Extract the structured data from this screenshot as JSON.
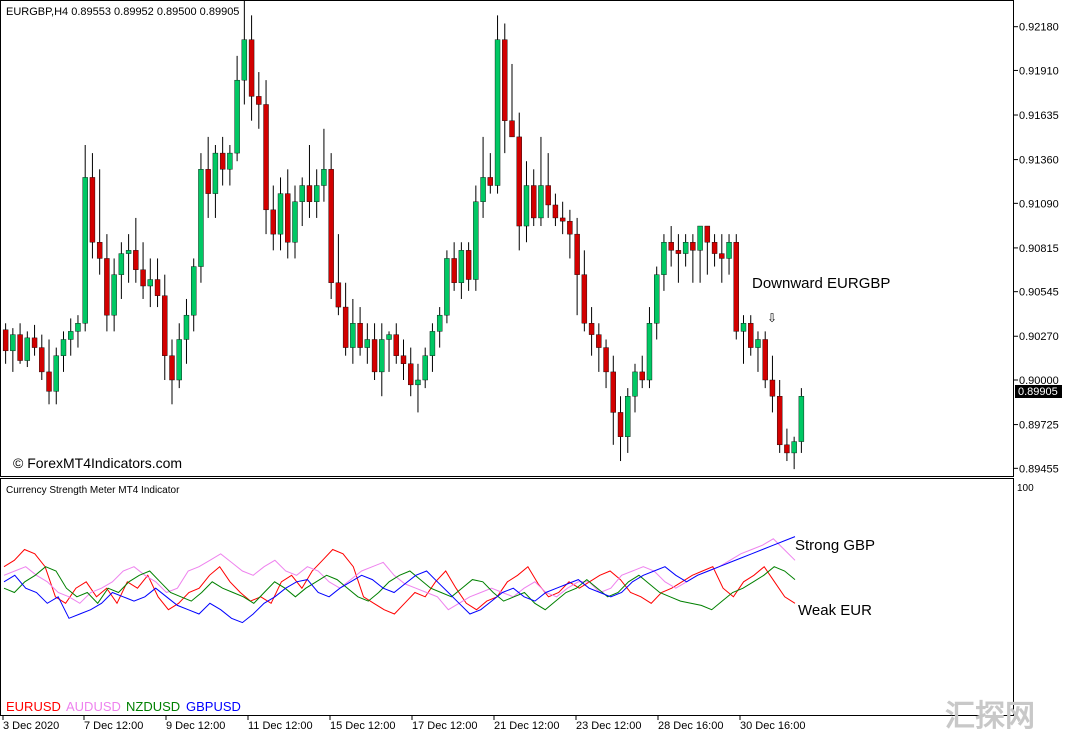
{
  "main_panel": {
    "header": "EURGBP,H4  0.89553 0.89952 0.89500 0.89905",
    "watermark": "© ForexMT4Indicators.com",
    "annotation": "Downward EURGBP",
    "annotation_arrow": "⇩",
    "current_price": "0.89905",
    "price_ticks": [
      "0.92180",
      "0.91910",
      "0.91635",
      "0.91360",
      "0.91090",
      "0.90815",
      "0.90545",
      "0.90270",
      "0.90000",
      "0.89725",
      "0.89455"
    ]
  },
  "indicator_panel": {
    "title": "Currency Strength Meter MT4 Indicator",
    "top_label": "100",
    "label_strong": "Strong GBP",
    "label_weak": "Weak EUR",
    "legend": [
      {
        "name": "EURUSD",
        "color": "#ff0000"
      },
      {
        "name": "AUDUSD",
        "color": "#ee82ee"
      },
      {
        "name": "NZDUSD",
        "color": "#008000"
      },
      {
        "name": "GBPUSD",
        "color": "#0000ff"
      }
    ]
  },
  "time_axis": [
    "3 Dec 2020",
    "7 Dec 12:00",
    "9 Dec 12:00",
    "11 Dec 12:00",
    "15 Dec 12:00",
    "17 Dec 12:00",
    "21 Dec 12:00",
    "23 Dec 12:00",
    "28 Dec 16:00",
    "30 Dec 16:00"
  ],
  "logo_text": "汇探网",
  "colors": {
    "bull": "#00c864",
    "bear": "#d20000",
    "wick": "#000000",
    "frame": "#000000"
  },
  "chart_data": {
    "type": "candlestick",
    "symbol": "EURGBP",
    "timeframe": "H4",
    "ylim": [
      0.8942,
      0.9232
    ],
    "candles": [
      [
        0.9031,
        0.9035,
        0.901,
        0.9018
      ],
      [
        0.9018,
        0.9032,
        0.9005,
        0.9028
      ],
      [
        0.9028,
        0.9035,
        0.901,
        0.9012
      ],
      [
        0.9012,
        0.903,
        0.9008,
        0.9026
      ],
      [
        0.9026,
        0.9034,
        0.9015,
        0.902
      ],
      [
        0.902,
        0.9028,
        0.9,
        0.9005
      ],
      [
        0.9005,
        0.9025,
        0.8985,
        0.8993
      ],
      [
        0.8993,
        0.902,
        0.8985,
        0.9015
      ],
      [
        0.9015,
        0.903,
        0.9005,
        0.9025
      ],
      [
        0.9025,
        0.9038,
        0.9015,
        0.903
      ],
      [
        0.903,
        0.904,
        0.902,
        0.9035
      ],
      [
        0.9035,
        0.9145,
        0.903,
        0.9125
      ],
      [
        0.9125,
        0.914,
        0.9075,
        0.9085
      ],
      [
        0.9085,
        0.913,
        0.9065,
        0.9075
      ],
      [
        0.9075,
        0.909,
        0.903,
        0.904
      ],
      [
        0.904,
        0.9075,
        0.903,
        0.9065
      ],
      [
        0.9065,
        0.9085,
        0.905,
        0.9078
      ],
      [
        0.9078,
        0.909,
        0.906,
        0.908
      ],
      [
        0.908,
        0.91,
        0.906,
        0.9068
      ],
      [
        0.9068,
        0.9085,
        0.905,
        0.9058
      ],
      [
        0.9058,
        0.9075,
        0.9045,
        0.9062
      ],
      [
        0.9062,
        0.9075,
        0.9045,
        0.9052
      ],
      [
        0.9052,
        0.9065,
        0.9,
        0.9015
      ],
      [
        0.9015,
        0.9025,
        0.8985,
        0.9
      ],
      [
        0.9,
        0.9035,
        0.8995,
        0.9025
      ],
      [
        0.9025,
        0.905,
        0.901,
        0.904
      ],
      [
        0.904,
        0.9075,
        0.903,
        0.907
      ],
      [
        0.907,
        0.914,
        0.906,
        0.913
      ],
      [
        0.913,
        0.915,
        0.91,
        0.9115
      ],
      [
        0.9115,
        0.9145,
        0.91,
        0.914
      ],
      [
        0.914,
        0.915,
        0.912,
        0.913
      ],
      [
        0.913,
        0.9145,
        0.912,
        0.914
      ],
      [
        0.914,
        0.92,
        0.9135,
        0.9185
      ],
      [
        0.9185,
        0.9235,
        0.917,
        0.921
      ],
      [
        0.921,
        0.9225,
        0.916,
        0.9175
      ],
      [
        0.9175,
        0.919,
        0.9155,
        0.917
      ],
      [
        0.917,
        0.9185,
        0.909,
        0.9105
      ],
      [
        0.9105,
        0.912,
        0.908,
        0.909
      ],
      [
        0.909,
        0.9125,
        0.908,
        0.9115
      ],
      [
        0.9115,
        0.913,
        0.9075,
        0.9085
      ],
      [
        0.9085,
        0.912,
        0.9075,
        0.911
      ],
      [
        0.911,
        0.9125,
        0.9095,
        0.912
      ],
      [
        0.912,
        0.9145,
        0.91,
        0.911
      ],
      [
        0.911,
        0.913,
        0.91,
        0.912
      ],
      [
        0.912,
        0.9155,
        0.911,
        0.913
      ],
      [
        0.913,
        0.914,
        0.905,
        0.906
      ],
      [
        0.906,
        0.909,
        0.904,
        0.9045
      ],
      [
        0.9045,
        0.906,
        0.9015,
        0.902
      ],
      [
        0.902,
        0.905,
        0.901,
        0.9035
      ],
      [
        0.9035,
        0.9045,
        0.9015,
        0.902
      ],
      [
        0.902,
        0.9035,
        0.901,
        0.9025
      ],
      [
        0.9025,
        0.9035,
        0.9,
        0.9005
      ],
      [
        0.9005,
        0.9035,
        0.899,
        0.9025
      ],
      [
        0.9025,
        0.903,
        0.9005,
        0.9028
      ],
      [
        0.9028,
        0.9035,
        0.901,
        0.9015
      ],
      [
        0.9015,
        0.9025,
        0.9,
        0.901
      ],
      [
        0.901,
        0.902,
        0.899,
        0.8997
      ],
      [
        0.8997,
        0.901,
        0.898,
        0.9
      ],
      [
        0.9,
        0.902,
        0.8995,
        0.9015
      ],
      [
        0.9015,
        0.9035,
        0.9005,
        0.903
      ],
      [
        0.903,
        0.9045,
        0.902,
        0.904
      ],
      [
        0.904,
        0.908,
        0.9035,
        0.9075
      ],
      [
        0.9075,
        0.9085,
        0.9055,
        0.906
      ],
      [
        0.906,
        0.9085,
        0.905,
        0.908
      ],
      [
        0.908,
        0.9085,
        0.9055,
        0.9062
      ],
      [
        0.9062,
        0.912,
        0.9055,
        0.911
      ],
      [
        0.911,
        0.915,
        0.91,
        0.9125
      ],
      [
        0.9125,
        0.914,
        0.9115,
        0.912
      ],
      [
        0.912,
        0.9225,
        0.9115,
        0.921
      ],
      [
        0.921,
        0.922,
        0.914,
        0.916
      ],
      [
        0.916,
        0.9195,
        0.915,
        0.915
      ],
      [
        0.915,
        0.9165,
        0.908,
        0.9095
      ],
      [
        0.9095,
        0.9135,
        0.9085,
        0.912
      ],
      [
        0.912,
        0.913,
        0.9095,
        0.91
      ],
      [
        0.91,
        0.915,
        0.9095,
        0.912
      ],
      [
        0.912,
        0.914,
        0.91,
        0.9108
      ],
      [
        0.9108,
        0.9115,
        0.9095,
        0.91
      ],
      [
        0.91,
        0.911,
        0.909,
        0.9098
      ],
      [
        0.9098,
        0.9105,
        0.9075,
        0.909
      ],
      [
        0.909,
        0.91,
        0.904,
        0.9065
      ],
      [
        0.9065,
        0.908,
        0.903,
        0.9035
      ],
      [
        0.9035,
        0.9045,
        0.9015,
        0.9028
      ],
      [
        0.9028,
        0.9035,
        0.9005,
        0.902
      ],
      [
        0.902,
        0.9025,
        0.8995,
        0.9005
      ],
      [
        0.9005,
        0.9015,
        0.896,
        0.898
      ],
      [
        0.898,
        0.899,
        0.895,
        0.8965
      ],
      [
        0.8965,
        0.8995,
        0.8955,
        0.899
      ],
      [
        0.899,
        0.901,
        0.898,
        0.9005
      ],
      [
        0.9005,
        0.9015,
        0.8995,
        0.9
      ],
      [
        0.9,
        0.9045,
        0.8995,
        0.9035
      ],
      [
        0.9035,
        0.907,
        0.9025,
        0.9065
      ],
      [
        0.9065,
        0.909,
        0.9055,
        0.9085
      ],
      [
        0.9085,
        0.9095,
        0.907,
        0.908
      ],
      [
        0.908,
        0.909,
        0.906,
        0.9078
      ],
      [
        0.9078,
        0.909,
        0.907,
        0.9085
      ],
      [
        0.9085,
        0.909,
        0.906,
        0.908
      ],
      [
        0.908,
        0.9095,
        0.906,
        0.9095
      ],
      [
        0.9095,
        0.9095,
        0.9065,
        0.9085
      ],
      [
        0.9085,
        0.909,
        0.907,
        0.9078
      ],
      [
        0.9078,
        0.909,
        0.906,
        0.9075
      ],
      [
        0.9075,
        0.909,
        0.9065,
        0.9085
      ],
      [
        0.9085,
        0.909,
        0.9025,
        0.903
      ],
      [
        0.903,
        0.904,
        0.901,
        0.9035
      ],
      [
        0.9035,
        0.904,
        0.9015,
        0.902
      ],
      [
        0.902,
        0.903,
        0.9005,
        0.9025
      ],
      [
        0.9025,
        0.903,
        0.8995,
        0.9
      ],
      [
        0.9,
        0.9015,
        0.898,
        0.899
      ],
      [
        0.899,
        0.9,
        0.8955,
        0.896
      ],
      [
        0.896,
        0.897,
        0.895,
        0.8955
      ],
      [
        0.8955,
        0.8965,
        0.8945,
        0.8962
      ],
      [
        0.8962,
        0.8995,
        0.8955,
        0.899
      ]
    ],
    "strength": {
      "ylim": [
        0,
        100
      ],
      "series": [
        {
          "name": "EURUSD",
          "color": "#ff0000",
          "values": [
            62,
            65,
            70,
            68,
            62,
            48,
            45,
            52,
            55,
            48,
            52,
            45,
            55,
            52,
            58,
            48,
            42,
            45,
            50,
            52,
            58,
            62,
            55,
            50,
            46,
            48,
            45,
            55,
            58,
            52,
            60,
            65,
            70,
            68,
            62,
            48,
            45,
            42,
            40,
            45,
            50,
            48,
            55,
            60,
            52,
            45,
            42,
            46,
            48,
            55,
            58,
            62,
            54,
            48,
            50,
            55,
            52,
            55,
            58,
            60,
            56,
            50,
            48,
            45,
            50,
            52,
            55,
            58,
            60,
            62,
            52,
            48,
            55,
            58,
            62,
            55,
            48,
            45
          ]
        },
        {
          "name": "AUDUSD",
          "color": "#ee82ee",
          "values": [
            58,
            60,
            62,
            58,
            55,
            50,
            48,
            45,
            50,
            52,
            55,
            60,
            62,
            58,
            55,
            50,
            52,
            60,
            62,
            65,
            68,
            64,
            60,
            58,
            62,
            65,
            60,
            58,
            62,
            60,
            55,
            52,
            56,
            60,
            62,
            64,
            58,
            54,
            52,
            50,
            48,
            42,
            45,
            48,
            50,
            52,
            50,
            48,
            52,
            55,
            50,
            48,
            52,
            55,
            55,
            50,
            52,
            58,
            60,
            62,
            60,
            55,
            52,
            55,
            58,
            60,
            62,
            65,
            68,
            70,
            72,
            75,
            70,
            65
          ]
        },
        {
          "name": "NZDUSD",
          "color": "#008000",
          "values": [
            52,
            50,
            55,
            58,
            62,
            60,
            52,
            48,
            50,
            45,
            52,
            50,
            55,
            58,
            60,
            55,
            50,
            48,
            46,
            50,
            55,
            52,
            50,
            48,
            45,
            50,
            55,
            52,
            48,
            52,
            55,
            58,
            56,
            52,
            48,
            46,
            50,
            55,
            58,
            60,
            56,
            52,
            50,
            48,
            52,
            56,
            55,
            50,
            46,
            48,
            50,
            45,
            42,
            46,
            50,
            52,
            56,
            52,
            48,
            50,
            55,
            58,
            54,
            50,
            48,
            46,
            45,
            44,
            42,
            46,
            50,
            52,
            55,
            58,
            62,
            60,
            56
          ]
        },
        {
          "name": "GBPUSD",
          "color": "#0000ff",
          "values": [
            55,
            58,
            52,
            50,
            45,
            48,
            38,
            40,
            42,
            45,
            50,
            48,
            46,
            48,
            52,
            48,
            44,
            42,
            40,
            45,
            42,
            38,
            36,
            40,
            45,
            48,
            52,
            55,
            56,
            50,
            48,
            52,
            55,
            58,
            56,
            52,
            50,
            54,
            58,
            60,
            55,
            50,
            45,
            40,
            42,
            46,
            50,
            52,
            48,
            46,
            50,
            52,
            54,
            56,
            52,
            50,
            48,
            50,
            55,
            58,
            60,
            62,
            58,
            55,
            58,
            60,
            62,
            64,
            66,
            68,
            70,
            72,
            74,
            76
          ]
        }
      ]
    }
  }
}
